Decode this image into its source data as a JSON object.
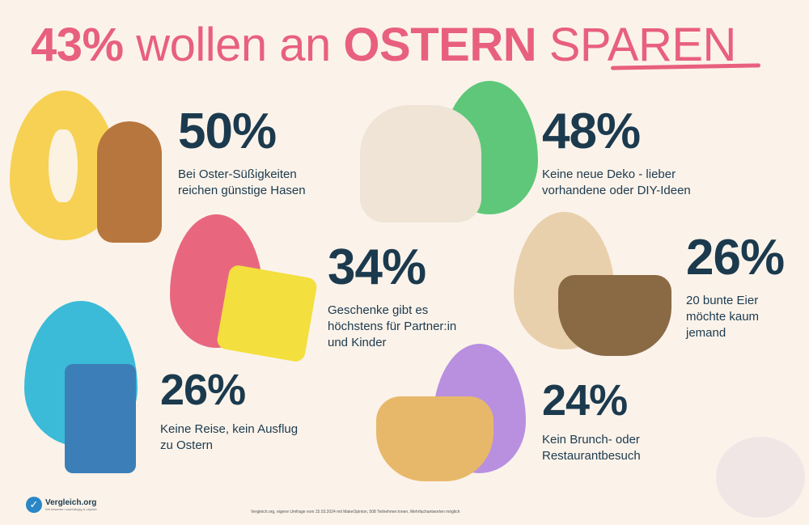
{
  "title": {
    "pct": "43%",
    "mid": "wollen an",
    "bold": "OSTERN",
    "end": "SPAREN"
  },
  "stats": [
    {
      "pct": "50%",
      "desc": [
        "Bei Oster-Süßigkeiten",
        "reichen günstige Hasen"
      ]
    },
    {
      "pct": "48%",
      "desc": [
        "Keine neue Deko - lieber",
        "vorhandene oder DIY-Ideen"
      ]
    },
    {
      "pct": "34%",
      "desc": [
        "Geschenke gibt es",
        "höchstens für Partner:in",
        "und Kinder"
      ]
    },
    {
      "pct": "26%",
      "desc": [
        "20 bunte Eier",
        "möchte kaum",
        "jemand"
      ]
    },
    {
      "pct": "26%",
      "desc": [
        "Keine Reise, kein Ausflug",
        "zu Ostern"
      ]
    },
    {
      "pct": "24%",
      "desc": [
        "Kein Brunch- oder",
        "Restaurantbesuch"
      ]
    }
  ],
  "logo": {
    "name": "Vergleich.org",
    "sub": "Wir bewerten unabhängig & objektiv"
  },
  "source": "Vergleich.org, eigene Umfrage vom 15.03.2024 mit MakeOpinion, 508 Teilnehmer:innen, Mehrfachantworten möglich",
  "colors": {
    "pink": "#e8607e",
    "navy": "#1c3a4e",
    "bg": "#fbf3ea"
  }
}
